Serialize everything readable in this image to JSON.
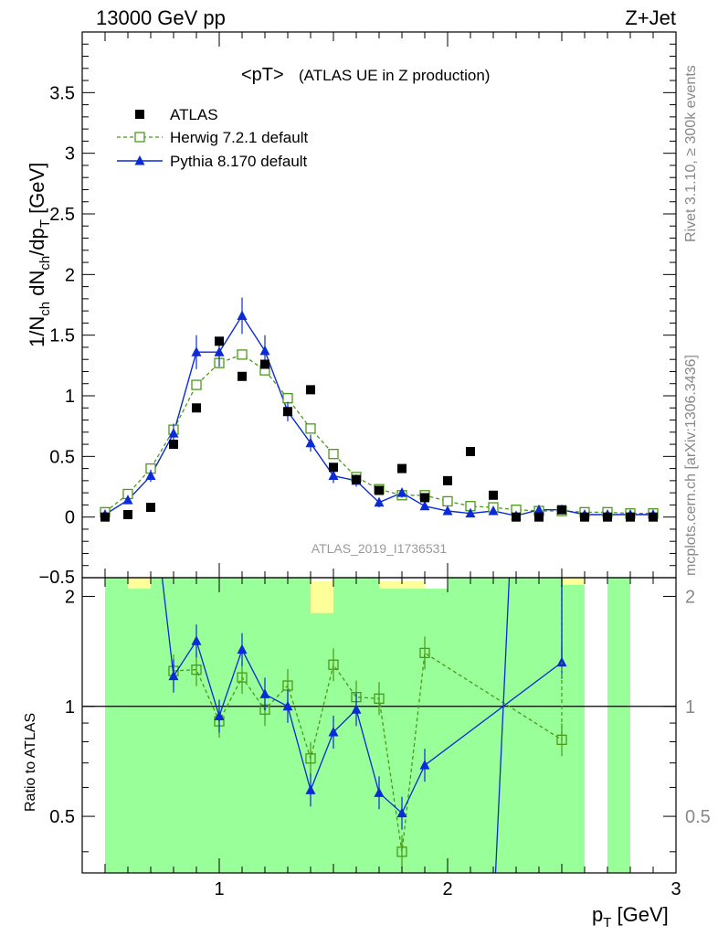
{
  "header": {
    "left": "13000 GeV pp",
    "right": "Z+Jet"
  },
  "side_text": {
    "rivet": "Rivet 3.1.10, ≥ 300k events",
    "mcplots": "mcplots.cern.ch [arXiv:1306.3436]"
  },
  "chart_data": [
    {
      "type": "scatter",
      "panel": "main",
      "title_main": "<pT>",
      "title_sub": "(ATLAS UE in Z production)",
      "ylabel": "1/N_ch dN_ch/dp_T [GeV]",
      "xlabel": "p_T [GeV]",
      "watermark": "ATLAS_2019_I1736531",
      "xlim": [
        0.4,
        3.0
      ],
      "ylim": [
        -0.5,
        4.0
      ],
      "x_ticks": [
        1,
        2,
        3
      ],
      "y_ticks": [
        0,
        0.5,
        1,
        1.5,
        2,
        2.5,
        3,
        3.5
      ],
      "y_tick_labels": [
        "0",
        "0.5",
        "1",
        "1.5",
        "2",
        "2.5",
        "3",
        "3.5"
      ],
      "bottom_tick_label": "−0.5",
      "legend": {
        "placement": "top-left"
      },
      "x": [
        0.5,
        0.6,
        0.7,
        0.8,
        0.9,
        1.0,
        1.1,
        1.2,
        1.3,
        1.4,
        1.5,
        1.6,
        1.7,
        1.8,
        1.9,
        2.0,
        2.1,
        2.2,
        2.3,
        2.4,
        2.5,
        2.6,
        2.7,
        2.8,
        2.9
      ],
      "series": [
        {
          "name": "ATLAS",
          "color": "#000000",
          "marker": "filled-square",
          "values": [
            0.0,
            0.02,
            0.08,
            0.6,
            0.9,
            1.45,
            1.16,
            1.26,
            0.87,
            1.05,
            0.41,
            0.31,
            0.22,
            0.4,
            0.16,
            0.3,
            0.54,
            0.18,
            0.0,
            0.0,
            0.06,
            0.0,
            0.0,
            0.0,
            0.0
          ]
        },
        {
          "name": "Herwig 7.2.1 default",
          "color": "#4a9a1a",
          "marker": "open-square",
          "line": "dashed",
          "values": [
            0.04,
            0.19,
            0.4,
            0.72,
            1.09,
            1.27,
            1.34,
            1.21,
            0.98,
            0.73,
            0.52,
            0.33,
            0.23,
            0.18,
            0.18,
            0.13,
            0.09,
            0.08,
            0.06,
            0.05,
            0.05,
            0.04,
            0.04,
            0.03,
            0.03
          ]
        },
        {
          "name": "Pythia 8.170 default",
          "color": "#0a2bd6",
          "marker": "filled-triangle",
          "line": "solid",
          "values": [
            0.02,
            0.14,
            0.34,
            0.69,
            1.36,
            1.36,
            1.66,
            1.37,
            0.87,
            0.61,
            0.34,
            0.3,
            0.12,
            0.2,
            0.09,
            0.05,
            0.03,
            0.05,
            0.01,
            0.06,
            0.06,
            0.02,
            0.02,
            0.02,
            0.02
          ],
          "errors": [
            0.02,
            0.03,
            0.05,
            0.08,
            0.14,
            0.12,
            0.15,
            0.13,
            0.08,
            0.07,
            0.06,
            0.05,
            0.04,
            0.04,
            0.03,
            0.02,
            0.02,
            0.02,
            0.01,
            0.02,
            0.02,
            0.01,
            0.01,
            0.01,
            0.01
          ]
        }
      ]
    },
    {
      "type": "line",
      "panel": "ratio",
      "ylabel": "Ratio to ATLAS",
      "xlim": [
        0.4,
        3.0
      ],
      "ylim": [
        0.35,
        2.25
      ],
      "y_ticks": [
        0.5,
        1,
        2
      ],
      "y_tick_labels": [
        "0.5",
        "1",
        "2"
      ],
      "bands": [
        {
          "x": [
            0.55,
            0.65,
            0.75,
            0.85,
            0.95,
            1.05,
            1.15,
            1.25,
            1.35,
            1.45,
            1.55,
            1.65,
            1.75,
            1.85,
            1.95,
            2.05,
            2.15,
            2.25,
            2.35,
            2.45,
            2.55,
            2.65,
            2.75,
            2.85
          ],
          "yellow_lo": [
            0.35,
            0.35,
            0.72,
            0.75,
            0.8,
            0.83,
            0.78,
            0.8,
            0.75,
            0.35,
            0.35,
            0.35,
            0.35,
            0.35,
            0.35,
            0.35,
            0.42,
            0.35,
            0.35,
            0.35,
            0.35,
            null,
            null,
            null
          ],
          "yellow_hi": [
            2.25,
            2.25,
            1.3,
            1.28,
            1.25,
            1.21,
            1.19,
            1.17,
            1.15,
            2.2,
            2.25,
            2.25,
            2.2,
            2.2,
            2.1,
            2.0,
            2.0,
            2.25,
            2.25,
            2.25,
            2.25,
            null,
            null,
            null
          ],
          "green_lo": [
            0.35,
            0.35,
            0.35,
            0.35,
            0.35,
            0.35,
            0.35,
            0.35,
            0.35,
            0.35,
            0.35,
            0.35,
            0.35,
            0.35,
            0.35,
            0.35,
            0.35,
            0.35,
            0.35,
            0.35,
            0.35,
            null,
            0.35,
            null
          ],
          "green_hi": [
            2.25,
            2.1,
            2.25,
            2.25,
            2.25,
            2.25,
            2.25,
            2.25,
            2.25,
            1.8,
            2.25,
            2.25,
            2.1,
            2.1,
            2.1,
            2.25,
            2.25,
            2.25,
            2.25,
            2.25,
            2.15,
            null,
            2.25,
            null
          ]
        }
      ],
      "series": [
        {
          "name": "Herwig 7.2.1 default",
          "color": "#4a9a1a",
          "x": [
            0.8,
            0.9,
            1.0,
            1.1,
            1.2,
            1.3,
            1.4,
            1.5,
            1.6,
            1.7,
            1.8,
            1.9,
            2.5
          ],
          "values": [
            1.25,
            1.26,
            0.91,
            1.2,
            0.98,
            1.14,
            0.72,
            1.3,
            1.06,
            1.05,
            0.4,
            1.4,
            0.81
          ]
        },
        {
          "name": "Pythia 8.170 default",
          "color": "#0a2bd6",
          "x": [
            0.8,
            0.9,
            1.0,
            1.1,
            1.2,
            1.3,
            1.4,
            1.5,
            1.6,
            1.7,
            1.8,
            1.9,
            2.5
          ],
          "values": [
            1.21,
            1.51,
            0.94,
            1.43,
            1.08,
            1.0,
            0.59,
            0.85,
            0.98,
            0.58,
            0.51,
            0.69,
            1.32
          ]
        }
      ]
    }
  ]
}
